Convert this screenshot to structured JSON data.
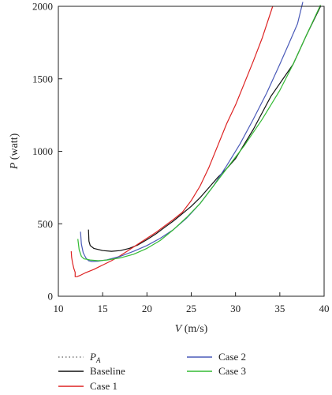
{
  "chart_data": {
    "type": "line",
    "title": "",
    "xlabel_var": "V",
    "xlabel_unit": " (m/s)",
    "ylabel_var": "P",
    "ylabel_unit": " (watt)",
    "xlim": [
      10,
      40
    ],
    "ylim": [
      0,
      2000
    ],
    "xticks": [
      "10",
      "15",
      "20",
      "25",
      "30",
      "35",
      "40"
    ],
    "yticks": [
      "0",
      "500",
      "1000",
      "1500",
      "2000"
    ],
    "grid": false,
    "legend_placement": "bottom",
    "reference_line": {
      "name_main": "P",
      "name_sub": "A",
      "y": 2000,
      "style": "dotted",
      "color": "#333333"
    },
    "series": [
      {
        "name": "Baseline",
        "color": "#111111",
        "x": [
          13.4,
          13.45,
          13.6,
          14.0,
          15.0,
          16.0,
          17.0,
          18.0,
          19.0,
          20.0,
          21.0,
          22.0,
          23.0,
          24.0,
          25.0,
          26.0,
          27.0,
          28.0,
          29.0,
          30.0,
          32.0,
          34.0,
          36.5,
          38.0,
          39.6
        ],
        "y": [
          460,
          380,
          350,
          330,
          315,
          310,
          315,
          330,
          355,
          390,
          430,
          475,
          520,
          570,
          620,
          680,
          750,
          820,
          880,
          950,
          1150,
          1380,
          1600,
          1800,
          2000
        ]
      },
      {
        "name": "Case 1",
        "color": "#dd2222",
        "x": [
          11.45,
          11.5,
          11.6,
          11.75,
          11.9,
          11.9,
          12.1,
          12.5,
          13.0,
          14.0,
          15.0,
          16.0,
          17.0,
          18.0,
          19.0,
          20.0,
          21.0,
          22.0,
          23.0,
          24.0,
          25.0,
          26.0,
          27.0,
          28.0,
          29.0,
          30.0,
          31.0,
          32.0,
          33.0,
          34.2
        ],
        "y": [
          310,
          270,
          230,
          190,
          165,
          135,
          135,
          145,
          160,
          185,
          215,
          245,
          280,
          320,
          360,
          400,
          440,
          485,
          530,
          580,
          660,
          760,
          890,
          1040,
          1190,
          1320,
          1470,
          1620,
          1780,
          2000
        ]
      },
      {
        "name": "Case 2",
        "color": "#4a5ab8",
        "x": [
          12.5,
          12.6,
          12.8,
          13.1,
          13.4,
          13.8,
          14.5,
          15.5,
          17.0,
          18.5,
          20.0,
          21.5,
          23.0,
          24.5,
          26.0,
          27.5,
          29.0,
          30.5,
          32.0,
          33.5,
          35.0,
          36.0,
          37.0,
          37.6
        ],
        "y": [
          445,
          360,
          300,
          265,
          245,
          240,
          242,
          252,
          275,
          310,
          350,
          400,
          460,
          540,
          640,
          760,
          900,
          1050,
          1220,
          1400,
          1600,
          1740,
          1880,
          2030
        ]
      },
      {
        "name": "Case 3",
        "color": "#33bb33",
        "x": [
          12.2,
          12.35,
          12.6,
          12.9,
          13.2,
          13.6,
          14.5,
          15.5,
          17.0,
          18.5,
          20.0,
          21.5,
          23.0,
          24.5,
          26.0,
          27.5,
          29.0,
          31.0,
          33.0,
          35.0,
          36.5,
          38.0,
          39.6
        ],
        "y": [
          395,
          320,
          275,
          258,
          255,
          250,
          245,
          250,
          265,
          290,
          330,
          385,
          460,
          545,
          640,
          760,
          880,
          1040,
          1220,
          1420,
          1600,
          1800,
          2010
        ]
      }
    ]
  }
}
